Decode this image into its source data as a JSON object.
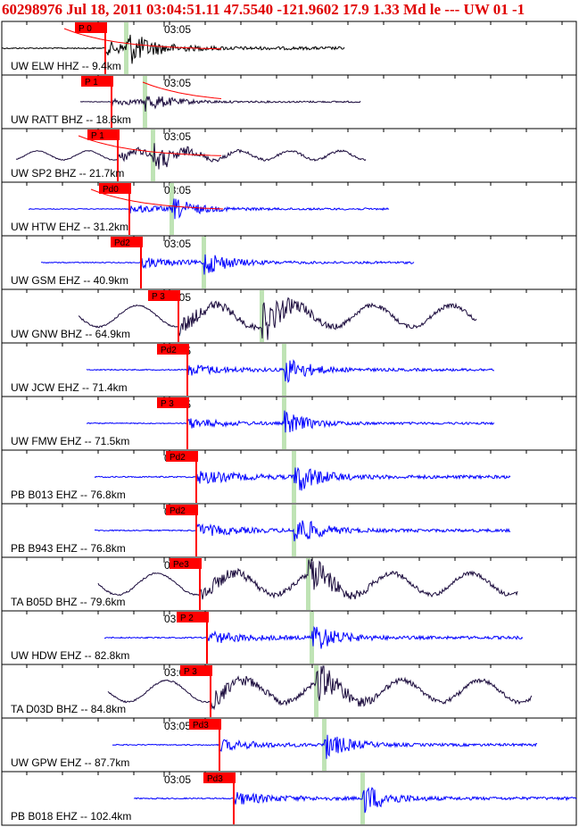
{
  "header": {
    "text": "60298976 Jul 18, 2011 03:04:51.11   47.5540 -121.9602 17.9 1.33 Md le --- UW 01  -1"
  },
  "colors": {
    "pick_box": "#ff0000",
    "pick_line": "#ff0000",
    "phase_marker": "#bfe3b5",
    "trace_blue": "#0000ff",
    "trace_dark": "#1a0a3c",
    "trace_black": "#000000"
  },
  "chart_data": {
    "type": "seismogram_stack",
    "time_label": "03:05",
    "traces": [
      {
        "label": "UW ELW HHZ -- 9.4km",
        "pick": "P 0",
        "color": "black",
        "amp": 9,
        "kind": "event"
      },
      {
        "label": "UW RATT BHZ -- 18.6km",
        "pick": "P 1",
        "color": "dark",
        "amp": 5,
        "kind": "event"
      },
      {
        "label": "UW SP2 BHZ -- 21.7km",
        "pick": "P 1",
        "color": "dark",
        "amp": 7,
        "kind": "noisy"
      },
      {
        "label": "UW HTW EHZ -- 31.2km",
        "pick": "Pd0",
        "color": "blue",
        "amp": 6,
        "kind": "event"
      },
      {
        "label": "UW GSM EHZ -- 40.9km",
        "pick": "Pd2",
        "color": "blue",
        "amp": 7,
        "kind": "event"
      },
      {
        "label": "UW GNW BHZ -- 64.9km",
        "pick": "P 3",
        "color": "dark",
        "amp": 12,
        "kind": "wave"
      },
      {
        "label": "UW JCW EHZ -- 71.4km",
        "pick": "Pd2",
        "color": "blue",
        "amp": 8,
        "kind": "event"
      },
      {
        "label": "UW FMW EHZ -- 71.5km",
        "pick": "P 3",
        "color": "blue",
        "amp": 7,
        "kind": "event"
      },
      {
        "label": "PB B013 EHZ -- 76.8km",
        "pick": "Pd2",
        "color": "blue",
        "amp": 10,
        "kind": "event"
      },
      {
        "label": "PB B943 EHZ -- 76.8km",
        "pick": "Pd2",
        "color": "blue",
        "amp": 9,
        "kind": "event"
      },
      {
        "label": "TA B05D BHZ -- 79.6km",
        "pick": "Pe3",
        "color": "dark",
        "amp": 12,
        "kind": "wave"
      },
      {
        "label": "UW HDW EHZ -- 82.8km",
        "pick": "P 2",
        "color": "blue",
        "amp": 9,
        "kind": "event"
      },
      {
        "label": "TA D03D BHZ -- 84.8km",
        "pick": "P 3",
        "color": "dark",
        "amp": 12,
        "kind": "wave"
      },
      {
        "label": "UW GPW EHZ -- 87.7km",
        "pick": "Pd3",
        "color": "blue",
        "amp": 8,
        "kind": "event"
      },
      {
        "label": "PB B018 EHZ -- 102.4km",
        "pick": "Pd3",
        "color": "blue",
        "amp": 9,
        "kind": "event"
      }
    ]
  }
}
